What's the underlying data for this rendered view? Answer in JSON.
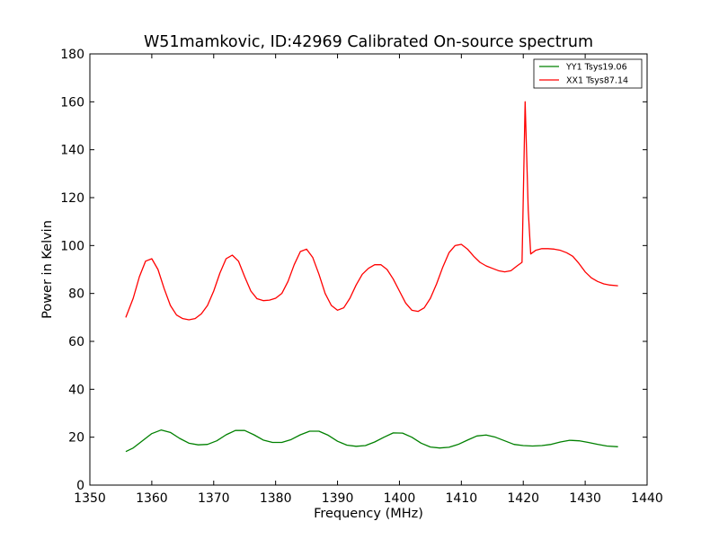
{
  "chart_data": {
    "type": "line",
    "title": "W51mamkovic, ID:42969 Calibrated On-source spectrum",
    "xlabel": "Frequency (MHz)",
    "ylabel": "Power in Kelvin",
    "xlim": [
      1350,
      1440
    ],
    "ylim": [
      0,
      180
    ],
    "xticks": [
      1350,
      1360,
      1370,
      1380,
      1390,
      1400,
      1410,
      1420,
      1430,
      1440
    ],
    "yticks": [
      0,
      20,
      40,
      60,
      80,
      100,
      120,
      140,
      160,
      180
    ],
    "grid": false,
    "legend_position": "top-right",
    "series": [
      {
        "name": "YY1 Tsys19.06",
        "color": "#008000",
        "x": [
          1355.8,
          1357.0,
          1358.5,
          1360.0,
          1361.5,
          1363.0,
          1364.5,
          1366.0,
          1367.5,
          1369.0,
          1370.5,
          1372.0,
          1373.5,
          1375.0,
          1376.5,
          1378.0,
          1379.5,
          1381.0,
          1382.5,
          1384.0,
          1385.5,
          1387.0,
          1388.5,
          1390.0,
          1391.5,
          1393.0,
          1394.5,
          1396.0,
          1397.5,
          1399.0,
          1400.5,
          1402.0,
          1403.5,
          1405.0,
          1406.5,
          1408.0,
          1409.5,
          1411.0,
          1412.5,
          1414.0,
          1415.5,
          1417.0,
          1418.5,
          1420.0,
          1421.5,
          1423.0,
          1424.5,
          1426.0,
          1427.5,
          1429.0,
          1430.5,
          1432.0,
          1433.5,
          1435.3
        ],
        "y": [
          14.0,
          15.5,
          18.5,
          21.5,
          23.0,
          22.0,
          19.5,
          17.5,
          16.8,
          17.0,
          18.5,
          21.0,
          22.8,
          22.8,
          21.0,
          18.8,
          17.8,
          17.8,
          19.0,
          21.0,
          22.5,
          22.5,
          20.8,
          18.3,
          16.7,
          16.2,
          16.5,
          18.0,
          20.0,
          21.8,
          21.7,
          20.0,
          17.5,
          15.9,
          15.5,
          15.8,
          17.0,
          18.8,
          20.5,
          20.9,
          20.0,
          18.5,
          17.0,
          16.5,
          16.3,
          16.5,
          17.0,
          18.0,
          18.7,
          18.5,
          17.8,
          17.0,
          16.3,
          16.0
        ]
      },
      {
        "name": "XX1 Tsys87.14",
        "color": "#ff0000",
        "x": [
          1355.8,
          1357.0,
          1358.0,
          1359.0,
          1360.0,
          1361.0,
          1362.0,
          1363.0,
          1364.0,
          1365.0,
          1366.0,
          1367.0,
          1368.0,
          1369.0,
          1370.0,
          1371.0,
          1372.0,
          1373.0,
          1374.0,
          1375.0,
          1376.0,
          1377.0,
          1378.0,
          1379.0,
          1380.0,
          1381.0,
          1382.0,
          1383.0,
          1384.0,
          1385.0,
          1386.0,
          1387.0,
          1388.0,
          1389.0,
          1390.0,
          1391.0,
          1392.0,
          1393.0,
          1394.0,
          1395.0,
          1396.0,
          1397.0,
          1398.0,
          1399.0,
          1400.0,
          1401.0,
          1402.0,
          1403.0,
          1404.0,
          1405.0,
          1406.0,
          1407.0,
          1408.0,
          1409.0,
          1410.0,
          1411.0,
          1412.0,
          1413.0,
          1414.0,
          1415.0,
          1416.0,
          1417.0,
          1418.0,
          1419.0,
          1419.8,
          1420.3,
          1420.8,
          1421.2,
          1422.0,
          1423.0,
          1424.0,
          1425.0,
          1426.0,
          1427.0,
          1428.0,
          1429.0,
          1430.0,
          1431.0,
          1432.0,
          1433.0,
          1434.0,
          1435.3
        ],
        "y": [
          70.0,
          78.0,
          87.0,
          93.5,
          94.5,
          90.0,
          82.0,
          75.0,
          71.0,
          69.5,
          69.0,
          69.5,
          71.5,
          75.0,
          81.0,
          88.5,
          94.5,
          96.0,
          93.5,
          87.0,
          81.0,
          77.8,
          77.0,
          77.2,
          78.0,
          80.0,
          85.0,
          92.0,
          97.5,
          98.5,
          95.0,
          88.0,
          80.0,
          75.0,
          73.0,
          74.0,
          78.0,
          83.5,
          88.0,
          90.5,
          92.0,
          92.0,
          90.0,
          86.0,
          81.0,
          76.0,
          73.0,
          72.5,
          74.0,
          78.0,
          84.0,
          91.0,
          97.0,
          100.0,
          100.5,
          98.5,
          95.5,
          93.0,
          91.5,
          90.5,
          89.5,
          89.0,
          89.5,
          91.5,
          93.0,
          160.0,
          115.0,
          96.5,
          98.0,
          98.7,
          98.7,
          98.5,
          98.0,
          97.0,
          95.5,
          92.5,
          89.0,
          86.5,
          85.0,
          84.0,
          83.5,
          83.2
        ]
      }
    ]
  }
}
